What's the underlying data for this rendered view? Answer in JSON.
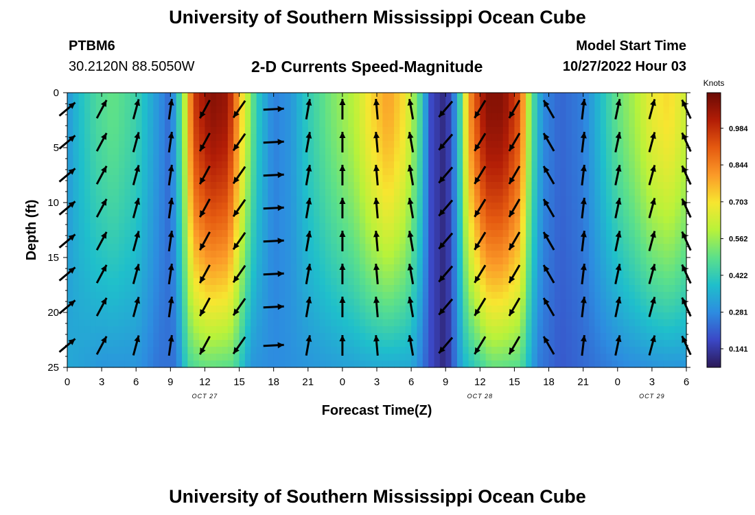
{
  "header": {
    "main_title": "University of Southern Mississippi Ocean Cube",
    "station_id": "PTBM6",
    "station_coords": "30.2120N  88.5050W",
    "model_start_label": "Model Start Time",
    "model_start_value": "10/27/2022 Hour 03"
  },
  "footer": {
    "repeated_title": "University of Southern Mississippi Ocean Cube"
  },
  "colors": {
    "colormap": [
      "#2b1957",
      "#3b48c6",
      "#2d8ce0",
      "#1fbfcb",
      "#5ce08a",
      "#b8f23a",
      "#f7e630",
      "#fb9a28",
      "#e55a10",
      "#b21d06",
      "#6a0a05"
    ],
    "arrow": "#000000"
  },
  "chart_data": {
    "type": "heatmap",
    "title": "2-D Currents Speed-Magnitude",
    "xlabel": "Forecast Time(Z)",
    "ylabel": "Depth (ft)",
    "x_ticks": [
      "0",
      "3",
      "6",
      "9",
      "12",
      "15",
      "18",
      "21",
      "0",
      "3",
      "6",
      "9",
      "12",
      "15",
      "18",
      "21",
      "0",
      "3",
      "6"
    ],
    "x_range_hours": [
      0,
      54
    ],
    "date_labels": [
      {
        "label": "OCT 27",
        "hour": 12
      },
      {
        "label": "OCT 28",
        "hour": 36
      },
      {
        "label": "OCT 29",
        "hour": 51
      }
    ],
    "y_ticks": [
      0,
      5,
      10,
      15,
      20,
      25
    ],
    "ylim": [
      0,
      25
    ],
    "y_inverted": true,
    "colorbar": {
      "label": "Knots",
      "ticks": [
        "0.141",
        "0.281",
        "0.422",
        "0.562",
        "0.703",
        "0.844",
        "0.984"
      ],
      "range": [
        0.07,
        1.12
      ]
    },
    "speed_profile_surface_knots": [
      {
        "hour": 0,
        "speed": 0.3
      },
      {
        "hour": 1,
        "speed": 0.38
      },
      {
        "hour": 2.5,
        "speed": 0.46
      },
      {
        "hour": 4,
        "speed": 0.5
      },
      {
        "hour": 6,
        "speed": 0.44
      },
      {
        "hour": 7.5,
        "speed": 0.33
      },
      {
        "hour": 9,
        "speed": 0.22
      },
      {
        "hour": 9.7,
        "speed": 0.42
      },
      {
        "hour": 10.3,
        "speed": 0.62
      },
      {
        "hour": 11,
        "speed": 0.96
      },
      {
        "hour": 12.5,
        "speed": 1.08
      },
      {
        "hour": 14,
        "speed": 1.05
      },
      {
        "hour": 15.3,
        "speed": 0.7
      },
      {
        "hour": 16.5,
        "speed": 0.42
      },
      {
        "hour": 18,
        "speed": 0.26
      },
      {
        "hour": 19.5,
        "speed": 0.3
      },
      {
        "hour": 21,
        "speed": 0.42
      },
      {
        "hour": 23,
        "speed": 0.52
      },
      {
        "hour": 25,
        "speed": 0.6
      },
      {
        "hour": 26.5,
        "speed": 0.72
      },
      {
        "hour": 28,
        "speed": 0.8
      },
      {
        "hour": 29.5,
        "speed": 0.7
      },
      {
        "hour": 30.8,
        "speed": 0.45
      },
      {
        "hour": 31.7,
        "speed": 0.18
      },
      {
        "hour": 33,
        "speed": 0.1
      },
      {
        "hour": 34,
        "speed": 0.32
      },
      {
        "hour": 35,
        "speed": 0.8
      },
      {
        "hour": 36.5,
        "speed": 1.08
      },
      {
        "hour": 38,
        "speed": 1.08
      },
      {
        "hour": 39.5,
        "speed": 0.92
      },
      {
        "hour": 40.4,
        "speed": 0.52
      },
      {
        "hour": 41.5,
        "speed": 0.28
      },
      {
        "hour": 43,
        "speed": 0.22
      },
      {
        "hour": 45,
        "speed": 0.26
      },
      {
        "hour": 46.5,
        "speed": 0.38
      },
      {
        "hour": 48,
        "speed": 0.5
      },
      {
        "hour": 49.5,
        "speed": 0.58
      },
      {
        "hour": 51,
        "speed": 0.68
      },
      {
        "hour": 52.5,
        "speed": 0.72
      },
      {
        "hour": 53.5,
        "speed": 0.66
      },
      {
        "hour": 54,
        "speed": 0.62
      }
    ],
    "speed_profile_bottom_knots": [
      {
        "hour": 0,
        "speed": 0.34
      },
      {
        "hour": 3,
        "speed": 0.3
      },
      {
        "hour": 6,
        "speed": 0.3
      },
      {
        "hour": 8,
        "speed": 0.24
      },
      {
        "hour": 9.5,
        "speed": 0.24
      },
      {
        "hour": 10.5,
        "speed": 0.45
      },
      {
        "hour": 12,
        "speed": 0.5
      },
      {
        "hour": 14.5,
        "speed": 0.48
      },
      {
        "hour": 16,
        "speed": 0.3
      },
      {
        "hour": 18,
        "speed": 0.28
      },
      {
        "hour": 21,
        "speed": 0.3
      },
      {
        "hour": 24,
        "speed": 0.32
      },
      {
        "hour": 27,
        "speed": 0.34
      },
      {
        "hour": 30,
        "speed": 0.34
      },
      {
        "hour": 31.7,
        "speed": 0.18
      },
      {
        "hour": 33,
        "speed": 0.1
      },
      {
        "hour": 34.5,
        "speed": 0.36
      },
      {
        "hour": 37,
        "speed": 0.5
      },
      {
        "hour": 39.5,
        "speed": 0.48
      },
      {
        "hour": 41,
        "speed": 0.26
      },
      {
        "hour": 43,
        "speed": 0.2
      },
      {
        "hour": 46,
        "speed": 0.24
      },
      {
        "hour": 49,
        "speed": 0.28
      },
      {
        "hour": 52,
        "speed": 0.3
      },
      {
        "hour": 54,
        "speed": 0.3
      }
    ],
    "direction_profile_deg": [
      {
        "hour": 0,
        "dir": 50
      },
      {
        "hour": 3,
        "dir": 28
      },
      {
        "hour": 6,
        "dir": 15
      },
      {
        "hour": 9,
        "dir": 8
      },
      {
        "hour": 9.5,
        "dir": 200
      },
      {
        "hour": 10.5,
        "dir": 205
      },
      {
        "hour": 15,
        "dir": 215
      },
      {
        "hour": 16.5,
        "dir": 210
      },
      {
        "hour": 17.5,
        "dir": 160
      },
      {
        "hour": 18.5,
        "dir": 15
      },
      {
        "hour": 21,
        "dir": 10
      },
      {
        "hour": 24,
        "dir": 0
      },
      {
        "hour": 27,
        "dir": 355
      },
      {
        "hour": 30,
        "dir": 350
      },
      {
        "hour": 31.5,
        "dir": 315
      },
      {
        "hour": 32.5,
        "dir": 225
      },
      {
        "hour": 34,
        "dir": 212
      },
      {
        "hour": 39.5,
        "dir": 210
      },
      {
        "hour": 40.5,
        "dir": 290
      },
      {
        "hour": 42,
        "dir": 330
      },
      {
        "hour": 44,
        "dir": 5
      },
      {
        "hour": 48,
        "dir": 12
      },
      {
        "hour": 51,
        "dir": 15
      },
      {
        "hour": 54,
        "dir": 335
      }
    ],
    "vector_grid_hours": [
      0,
      3,
      6,
      9,
      12,
      15,
      18,
      21,
      24,
      27,
      30,
      33,
      36,
      39,
      42,
      45,
      48,
      51,
      54
    ],
    "vector_grid_depths_ft": [
      1.5,
      4.5,
      7.5,
      10.5,
      13.5,
      16.5,
      19.5,
      23.0
    ]
  }
}
